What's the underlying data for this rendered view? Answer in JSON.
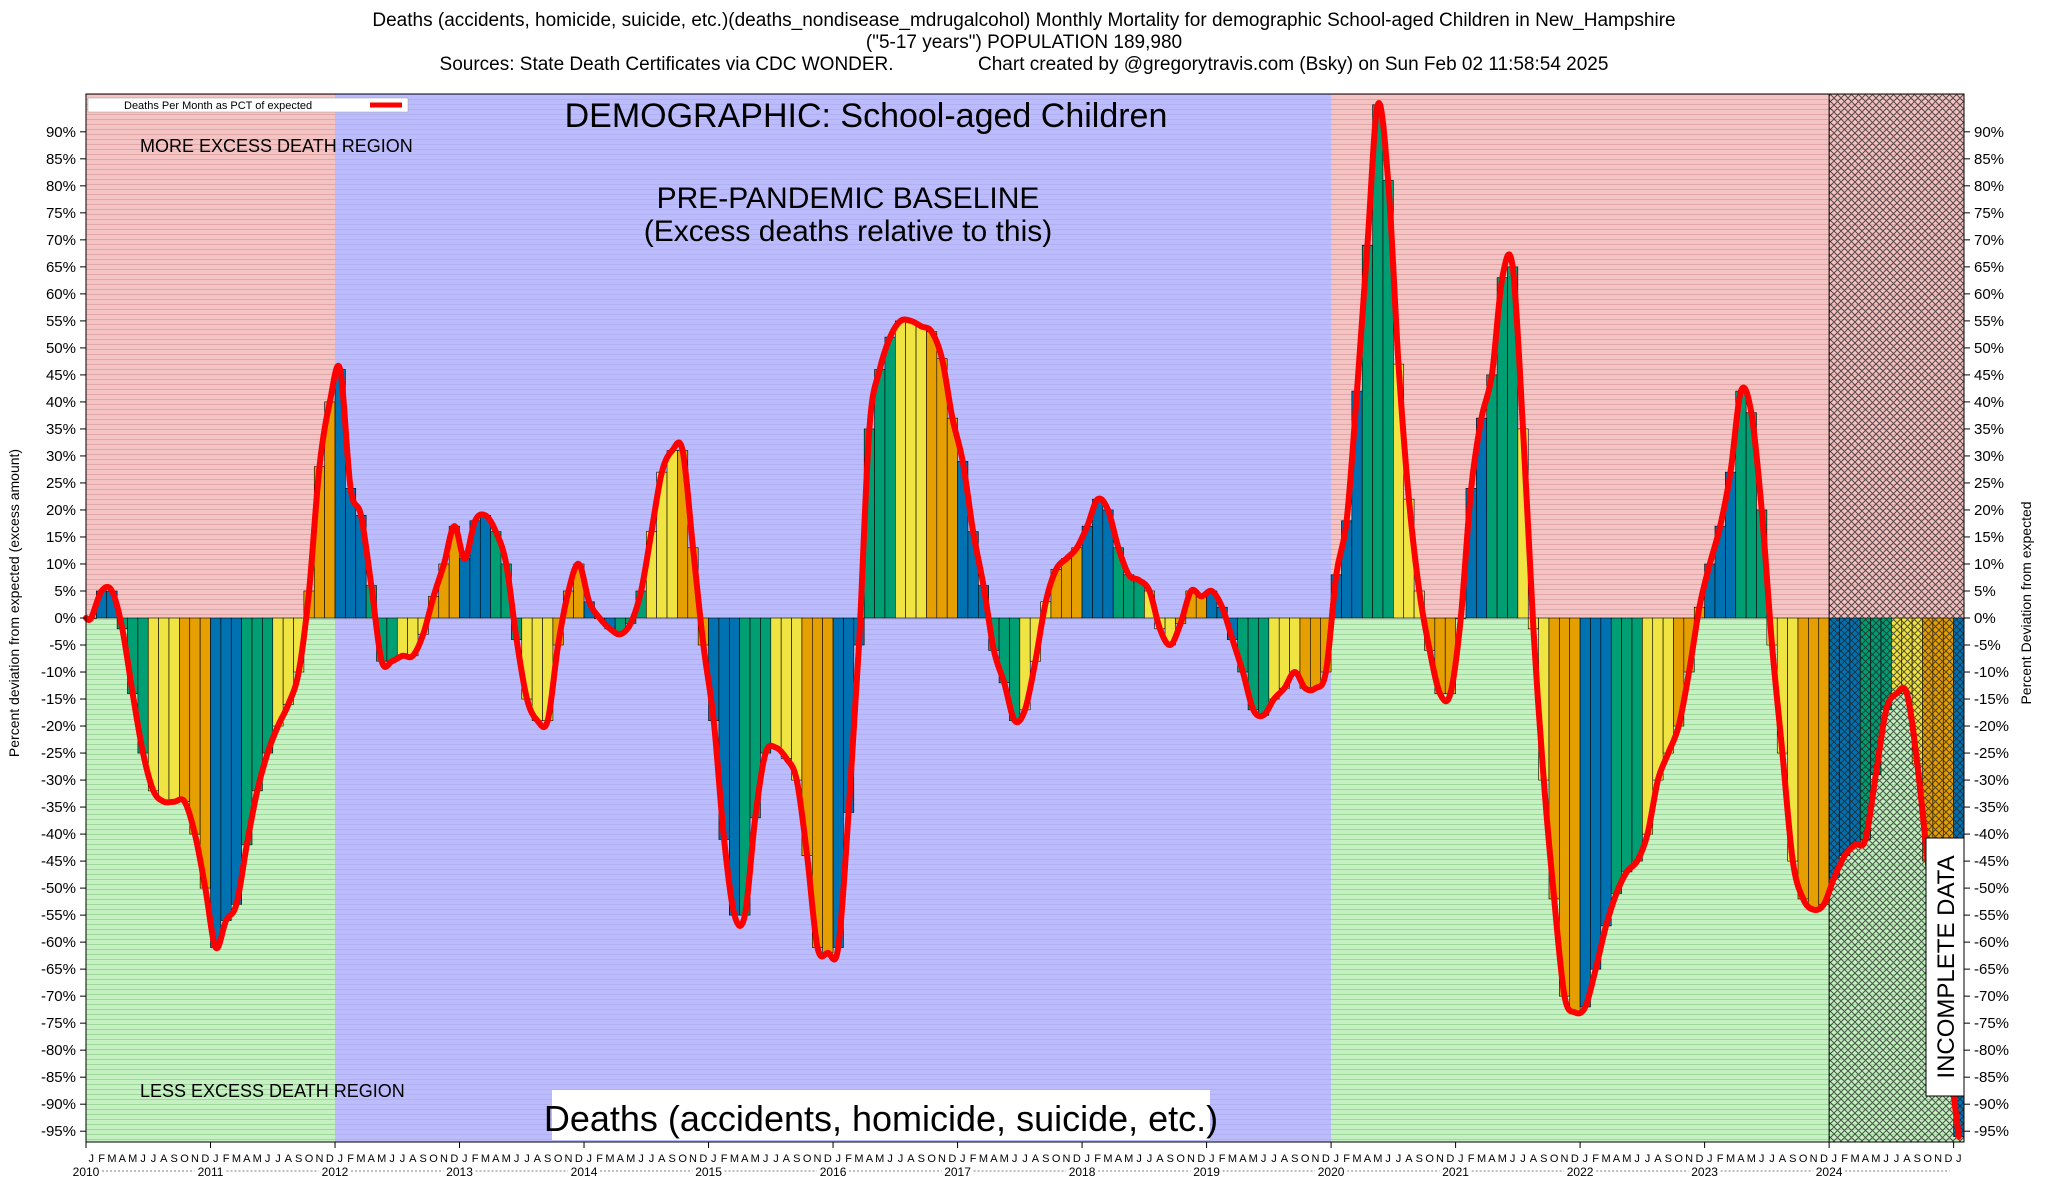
{
  "header": {
    "line1": "Deaths (accidents, homicide, suicide, etc.)(deaths_nondisease_mdrugalcohol) Monthly Mortality for demographic School-aged Children in New_Hampshire",
    "line2": "(\"5-17 years\") POPULATION 189,980",
    "line3": "Sources: State Death Certificates via CDC WONDER.                Chart created by @gregorytravis.com (Bsky) on Sun Feb 02 11:58:54 2025"
  },
  "chart_data": {
    "type": "bar",
    "title": "DEMOGRAPHIC: School-aged Children",
    "bottom_title": "Deaths (accidents, homicide, suicide, etc.)",
    "ylabel_left": "Percent deviation from expected (excess amount)",
    "ylabel_right": "Percent Deviation from expected",
    "legend": "Deaths Per Month as PCT of expected",
    "ylim": [
      -97,
      97
    ],
    "yticks": [
      -95,
      -90,
      -85,
      -80,
      -75,
      -70,
      -65,
      -60,
      -55,
      -50,
      -45,
      -40,
      -35,
      -30,
      -25,
      -20,
      -15,
      -10,
      -5,
      0,
      5,
      10,
      15,
      20,
      25,
      30,
      35,
      40,
      45,
      50,
      55,
      60,
      65,
      70,
      75,
      80,
      85,
      90
    ],
    "month_letters": [
      "J",
      "F",
      "M",
      "A",
      "M",
      "J",
      "J",
      "A",
      "S",
      "O",
      "N",
      "D"
    ],
    "years": [
      "2010",
      "2011",
      "2012",
      "2013",
      "2014",
      "2015",
      "2016",
      "2017",
      "2018",
      "2019",
      "2020",
      "2021",
      "2022",
      "2023",
      "2024"
    ],
    "start": "2010-01",
    "end": "2024-10",
    "regions": {
      "more_excess_label": "MORE EXCESS DEATH REGION",
      "less_excess_label": "LESS EXCESS DEATH REGION",
      "baseline_label_1": "PRE-PANDEMIC BASELINE",
      "baseline_label_2": "(Excess deaths relative to this)",
      "baseline_start": "2012-01",
      "baseline_end": "2019-12",
      "incomplete_label": "INCOMPLETE DATA",
      "incomplete_start": "2024-01"
    },
    "series": [
      {
        "values": [
          0,
          5,
          5,
          -2,
          -14,
          -25,
          -32,
          -34,
          -34,
          -34,
          -40,
          -50,
          -61,
          -56,
          -53,
          -42,
          -32,
          -25,
          -20,
          -16,
          -10,
          5,
          28,
          40,
          46,
          24,
          19,
          6,
          -8,
          -8,
          -7,
          -7,
          -3,
          4,
          10,
          17,
          11,
          18,
          19,
          16,
          10,
          -4,
          -15,
          -19,
          -19,
          -5,
          5,
          10,
          3,
          0,
          -2,
          -3,
          -1,
          5,
          16,
          27,
          31,
          31,
          13,
          -5,
          -19,
          -41,
          -55,
          -55,
          -37,
          -25,
          -24,
          -26,
          -30,
          -44,
          -61,
          -62,
          -61,
          -36,
          -5,
          35,
          46,
          52,
          55,
          55,
          54,
          53,
          48,
          37,
          29,
          16,
          6,
          -6,
          -12,
          -19,
          -17,
          -8,
          3,
          9,
          11,
          13,
          17,
          22,
          20,
          13,
          8,
          7,
          5,
          -2,
          -5,
          -1,
          5,
          4,
          5,
          2,
          -4,
          -10,
          -17,
          -18,
          -15,
          -13,
          -10,
          -13,
          -13,
          -10,
          8,
          18,
          42,
          69,
          95,
          81,
          47,
          22,
          5,
          -6,
          -14,
          -14,
          0,
          24,
          37,
          45,
          63,
          65,
          35,
          -2,
          -30,
          -52,
          -70,
          -73,
          -72,
          -65,
          -57,
          -51,
          -47,
          -45,
          -40,
          -30,
          -25,
          -20,
          -10,
          2,
          10,
          17,
          27,
          42,
          38,
          20,
          -5,
          -25,
          -45,
          -52,
          -54,
          -53,
          -48,
          -44,
          -42,
          -41,
          -29,
          -17,
          -14,
          -14,
          -27,
          -45,
          -60,
          -80,
          -96
        ]
      }
    ],
    "colors": {
      "bar_cycle": [
        "#0072b2",
        "#009e73",
        "#f0e442",
        "#e69f00"
      ],
      "line": "#ff0000",
      "excess_bg": "#f4c3c3",
      "deficit_bg": "#c4f0c2",
      "baseline_bg": "#bcbcfc"
    }
  }
}
